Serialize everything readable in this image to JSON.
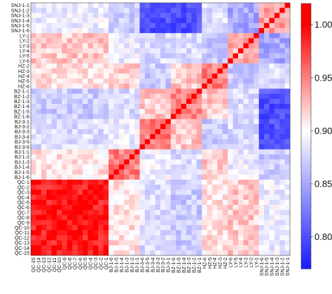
{
  "chart_data": {
    "type": "heatmap",
    "title": "",
    "xlabel": "",
    "ylabel": "",
    "row_labels": [
      "SNJ-1-1",
      "SNJ-1-2",
      "SNJ-1-3",
      "SNJ-1-4",
      "SNJ-1-5",
      "SNJ-1-6",
      "LY-1",
      "LY-2",
      "LY-3",
      "LY-4",
      "LY-5",
      "LY-6",
      "HZ-2",
      "HZ-3",
      "HZ-4",
      "HZ-5",
      "HZ-6",
      "BZ-1-1",
      "BZ-1-2",
      "BZ-1-3",
      "BZ-1-4",
      "BZ-1-5",
      "BZ-1-6",
      "BJ-3-1",
      "BJ-3-2",
      "BJ-3-3",
      "BJ-3-4",
      "BJ-3-5",
      "BJ-3-6",
      "BJ-1-1",
      "BJ-1-2",
      "BJ-1-3",
      "BJ-1-4",
      "BJ-1-5",
      "BJ-1-6",
      "QC-1",
      "QC-2",
      "QC-3",
      "QC-4",
      "QC-5",
      "QC-6",
      "QC-7",
      "QC-8",
      "QC-9",
      "QC-10",
      "QC-11",
      "QC-12",
      "QC-13",
      "QC-14",
      "QC-15"
    ],
    "col_labels": [
      "QC-15",
      "QC-14",
      "QC-13",
      "QC-12",
      "QC-11",
      "QC-10",
      "QC-9",
      "QC-8",
      "QC-7",
      "QC-6",
      "QC-5",
      "QC-4",
      "QC-3",
      "QC-2",
      "QC-1",
      "BJ-1-6",
      "BJ-1-5",
      "BJ-1-4",
      "BJ-1-3",
      "BJ-1-2",
      "BJ-1-1",
      "BJ-3-6",
      "BJ-3-5",
      "BJ-3-4",
      "BJ-3-3",
      "BJ-3-2",
      "BJ-3-1",
      "BZ-1-6",
      "BZ-1-5",
      "BZ-1-4",
      "BZ-1-3",
      "BZ-1-2",
      "BZ-1-1",
      "HZ-6",
      "HZ-5",
      "HZ-4",
      "HZ-3",
      "HZ-2",
      "LY-6",
      "LY-5",
      "LY-4",
      "LY-3",
      "LY-2",
      "LY-1",
      "SNJ-1-6",
      "SNJ-1-5",
      "SNJ-1-4",
      "SNJ-1-3",
      "SNJ-1-2",
      "SNJ-1-1"
    ],
    "groups": [
      "SNJ",
      "LY",
      "HZ",
      "BZ",
      "BJ3",
      "BJ1",
      "QC"
    ],
    "group_sizes": [
      6,
      6,
      5,
      6,
      6,
      6,
      15
    ],
    "block_values": [
      [
        0.94,
        0.85,
        0.88,
        0.8,
        0.8,
        0.87,
        0.89
      ],
      [
        0.85,
        0.93,
        0.87,
        0.88,
        0.88,
        0.89,
        0.92
      ],
      [
        0.88,
        0.87,
        0.95,
        0.92,
        0.87,
        0.92,
        0.91
      ],
      [
        0.8,
        0.88,
        0.92,
        0.95,
        0.92,
        0.88,
        0.87
      ],
      [
        0.8,
        0.88,
        0.87,
        0.92,
        0.95,
        0.89,
        0.88
      ],
      [
        0.87,
        0.89,
        0.92,
        0.88,
        0.89,
        0.95,
        0.91
      ],
      [
        0.89,
        0.92,
        0.91,
        0.87,
        0.88,
        0.91,
        0.99
      ]
    ],
    "diagonal_value": 1.0,
    "colorbar": {
      "min": 0.77,
      "max": 1.02,
      "ticks": [
        "1.00",
        "0.95",
        "0.90",
        "0.85",
        "0.80"
      ],
      "colors": {
        "low": "#1a1aff",
        "mid": "#ffffff",
        "high": "#ff0000"
      },
      "mid_value": 0.9
    }
  }
}
